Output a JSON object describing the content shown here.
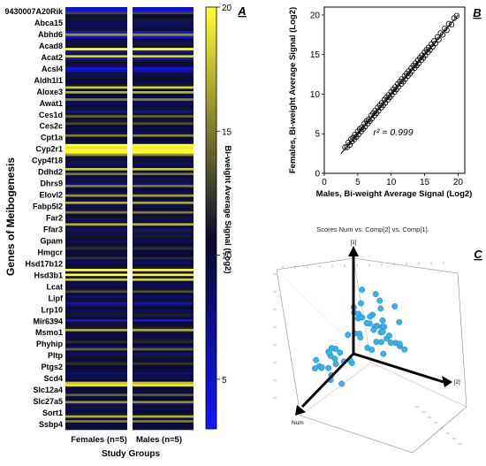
{
  "panel_labels": {
    "a": "A",
    "b": "B",
    "c": "C"
  },
  "chart_data": [
    {
      "type": "heatmap",
      "panel": "A",
      "ylabel": "Genes of Meibogenesis",
      "xlabel": "Study Groups",
      "columns": [
        "Females (n=5)",
        "Males (n=5)"
      ],
      "row_labels": [
        "9430007A20Rik",
        "Abca15",
        "Abhd6",
        "Acad8",
        "Acat2",
        "Acsl4",
        "Aldh1l1",
        "Aloxe3",
        "Awat1",
        "Ces1d",
        "Ces2c",
        "Cpt1a",
        "Cyp2r1",
        "Cyp4f18",
        "Ddhd2",
        "Dhrs9",
        "Elovl2",
        "Fabp5l2",
        "Far2",
        "Ffar3",
        "Gpam",
        "Hmgcr",
        "Hsd17b12",
        "Hsd3b1",
        "Lcat",
        "Lipf",
        "Lrp10",
        "Mir6394",
        "Msmo1",
        "Phyhip",
        "Pltp",
        "Ptgs2",
        "Scd4",
        "Slc12a4",
        "Slc27a5",
        "Sort1",
        "Ssbp4"
      ],
      "colorbar": {
        "label": "Bi-weight Average Signal (Log2)",
        "min": 3,
        "max": 20,
        "ticks": [
          5,
          10,
          15,
          20
        ],
        "colors": [
          "#1414ff",
          "#0a0a2a",
          "#ffff30"
        ]
      },
      "row_signal": [
        5,
        4,
        13,
        10,
        11,
        11,
        9,
        9,
        9,
        11,
        4,
        16,
        4,
        10,
        9,
        11,
        10,
        20,
        5,
        9,
        18,
        5,
        11,
        10,
        11,
        4,
        6,
        11,
        9,
        11,
        10,
        10,
        11,
        18,
        10,
        17,
        10,
        10,
        15,
        9,
        9,
        10,
        11,
        6,
        11,
        14,
        10,
        11,
        13,
        10,
        9,
        10,
        9,
        15,
        10,
        10,
        10,
        20,
        19,
        20,
        20,
        16,
        11,
        9,
        11,
        8,
        10,
        18,
        10,
        15,
        10,
        9,
        11,
        8,
        15,
        10,
        10,
        9,
        16,
        10,
        9,
        17,
        9,
        9,
        11,
        15,
        10,
        11,
        8,
        10,
        17,
        11,
        8,
        11,
        9,
        11,
        10,
        9,
        10,
        11,
        12,
        10,
        10,
        10,
        12,
        9,
        9,
        10,
        11,
        20,
        10,
        20,
        11,
        18,
        10,
        9,
        10,
        11,
        13,
        10,
        8,
        10,
        11,
        6,
        11,
        10,
        9,
        11,
        11,
        10,
        4,
        11,
        10,
        11,
        17,
        9,
        10,
        10,
        11,
        12,
        10,
        9,
        14,
        10,
        8,
        11,
        10,
        11,
        12,
        10,
        10,
        10,
        8,
        10,
        9,
        10,
        18,
        19,
        10,
        10,
        10,
        14,
        10,
        10,
        16,
        9,
        11,
        9,
        10,
        11,
        17,
        10,
        15,
        10,
        10,
        10
      ]
    },
    {
      "type": "scatter",
      "panel": "B",
      "xlabel": "Males, Bi-weight Average Signal (Log2)",
      "ylabel": "Females, Bi-weight Average Signal (Log2)",
      "xlim": [
        0,
        21
      ],
      "ylim": [
        0,
        21
      ],
      "xticks": [
        0,
        5,
        10,
        15,
        20
      ],
      "yticks": [
        0,
        5,
        10,
        15,
        20
      ],
      "annotation": "r² = 0.999",
      "fit_line": {
        "x": [
          2.5,
          20
        ],
        "y": [
          2.5,
          20
        ]
      },
      "x": [
        3.1,
        3.4,
        3.6,
        3.8,
        4.0,
        4.1,
        4.3,
        4.5,
        4.6,
        4.8,
        5.0,
        5.1,
        5.3,
        5.5,
        5.6,
        5.8,
        6.0,
        6.1,
        6.3,
        6.5,
        6.6,
        6.8,
        7.0,
        7.1,
        7.3,
        7.5,
        7.6,
        7.8,
        8.0,
        8.1,
        8.3,
        8.5,
        8.6,
        8.8,
        9.0,
        9.1,
        9.3,
        9.5,
        9.6,
        9.8,
        10.0,
        10.1,
        10.3,
        10.5,
        10.6,
        10.8,
        11.0,
        11.1,
        11.3,
        11.5,
        11.6,
        11.8,
        12.0,
        12.1,
        12.3,
        12.5,
        12.6,
        12.8,
        13.0,
        13.1,
        13.3,
        13.5,
        13.6,
        13.8,
        14.0,
        14.1,
        14.3,
        14.5,
        14.6,
        14.8,
        15.0,
        15.1,
        15.3,
        15.5,
        15.6,
        15.8,
        16.0,
        16.2,
        16.4,
        16.6,
        16.9,
        17.1,
        17.4,
        17.7,
        18.0,
        18.3,
        18.6,
        19.0,
        19.4,
        19.8
      ],
      "y": [
        3.3,
        3.3,
        3.9,
        3.6,
        4.3,
        4.0,
        4.5,
        4.3,
        4.9,
        4.6,
        5.3,
        4.9,
        5.6,
        5.3,
        5.8,
        5.6,
        6.3,
        5.9,
        6.6,
        6.3,
        6.8,
        6.6,
        7.3,
        6.9,
        7.6,
        7.3,
        7.9,
        7.6,
        8.3,
        7.9,
        8.6,
        8.3,
        8.9,
        8.6,
        9.3,
        8.9,
        9.6,
        9.3,
        9.9,
        9.6,
        10.3,
        9.9,
        10.6,
        10.3,
        10.9,
        10.6,
        11.3,
        10.9,
        11.6,
        11.3,
        11.9,
        11.6,
        12.3,
        11.9,
        12.6,
        12.3,
        12.9,
        12.6,
        13.3,
        12.9,
        13.6,
        13.3,
        13.9,
        13.6,
        14.3,
        13.9,
        14.6,
        14.3,
        14.9,
        14.6,
        15.3,
        14.9,
        15.6,
        15.3,
        15.9,
        15.6,
        16.3,
        16.0,
        16.7,
        16.4,
        17.2,
        16.9,
        17.7,
        17.5,
        18.3,
        18.1,
        18.9,
        18.8,
        19.6,
        19.9
      ]
    },
    {
      "type": "scatter",
      "subtype": "3d",
      "panel": "C",
      "title": "Scores Num vs. Comp[2] vs. Comp[1].",
      "axes": [
        "Num",
        "[2]",
        "[1]"
      ],
      "points_comp1": [
        1.2,
        -0.5,
        0.8,
        2.1,
        -1.3,
        0.4,
        1.7,
        -0.8,
        0.1,
        2.9,
        -1.9,
        0.6,
        1.1,
        -0.2,
        3.3,
        0.9,
        -1.1,
        1.5,
        0.3,
        -0.6,
        2.4,
        0.7,
        -1.6,
        1.9,
        0.2,
        -0.4,
        1.3,
        2.6,
        -0.9,
        0.5,
        1.8,
        -1.4,
        0.0,
        2.2,
        -0.7,
        1.0,
        3.6,
        -0.3,
        1.4,
        0.8,
        -1.8,
        2.0,
        0.6,
        -1.0,
        1.6,
        0.4,
        -0.1,
        2.8,
        -1.2,
        0.9,
        1.2,
        -0.5,
        2.3,
        0.3,
        -1.5,
        1.7,
        0.7,
        -0.8,
        3.0,
        0.1
      ],
      "points_comp2": [
        0.1,
        -0.05,
        0.12,
        0.02,
        -0.1,
        0.08,
        0.15,
        -0.02,
        0.04,
        0.11,
        -0.08,
        0.06,
        0.13,
        -0.04,
        0.09,
        0.01,
        -0.12,
        0.07,
        0.14,
        -0.06,
        0.03,
        0.1,
        -0.09,
        0.05,
        0.12,
        -0.03,
        0.08,
        0.0,
        -0.07,
        0.11,
        0.02,
        -0.11,
        0.06,
        0.13,
        -0.05,
        0.09,
        0.04,
        -0.08,
        0.1,
        0.01,
        -0.1,
        0.07,
        0.12,
        -0.02,
        0.05,
        0.14,
        -0.06,
        0.03,
        -0.09,
        0.11,
        0.08,
        -0.04,
        0.02,
        0.13,
        -0.07,
        0.06,
        0.0,
        -0.12,
        0.09,
        0.04
      ],
      "points_num": [
        12,
        45,
        78,
        110,
        140,
        170,
        200,
        230,
        260,
        290,
        320,
        30,
        60,
        95,
        125,
        155,
        185,
        215,
        245,
        275,
        305,
        335,
        20,
        55,
        85,
        115,
        150,
        180,
        210,
        240,
        270,
        300,
        330,
        40,
        70,
        100,
        135,
        165,
        195,
        225,
        255,
        285,
        315,
        15,
        50,
        80,
        120,
        160,
        190,
        220,
        250,
        280,
        310,
        340,
        35,
        65,
        105,
        145,
        175,
        205
      ]
    }
  ]
}
